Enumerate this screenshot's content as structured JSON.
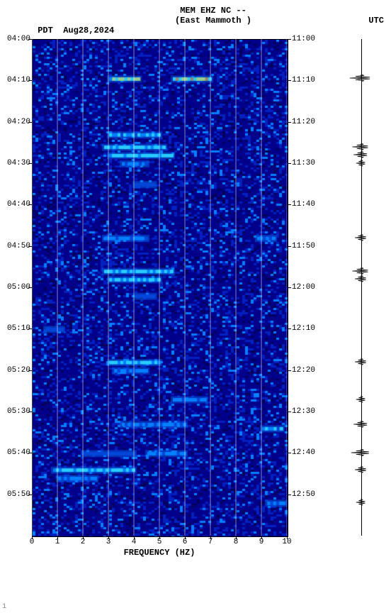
{
  "header": {
    "title_line1": "MEM EHZ NC --",
    "title_line2": "(East Mammoth )",
    "left_tz": "PDT",
    "left_date": "Aug28,2024",
    "right_tz": "UTC"
  },
  "plot": {
    "frequency_title": "FREQUENCY (HZ)",
    "xlim": [
      0,
      10
    ],
    "xticks": [
      0,
      1,
      2,
      3,
      4,
      5,
      6,
      7,
      8,
      9,
      10
    ],
    "left_time_start": "04:00",
    "right_time_start": "11:00",
    "time_span_minutes": 120,
    "ytick_step_minutes": 10,
    "left_labels": [
      "04:00",
      "04:10",
      "04:20",
      "04:30",
      "04:40",
      "04:50",
      "05:00",
      "05:10",
      "05:20",
      "05:30",
      "05:40",
      "05:50"
    ],
    "right_labels": [
      "11:00",
      "11:10",
      "11:20",
      "11:30",
      "11:40",
      "11:50",
      "12:00",
      "12:10",
      "12:20",
      "12:30",
      "12:40",
      "12:50"
    ],
    "background_color": "#00008b",
    "grid_color": "#ffffff",
    "colormap": {
      "low": "#00005a",
      "mid1": "#0020c0",
      "mid2": "#0080ff",
      "high1": "#40ffff",
      "high2": "#ffff40",
      "high3": "#ff8000"
    }
  },
  "events": [
    {
      "time_min": 9.5,
      "freq_lo": 3.0,
      "freq_hi": 4.2,
      "intensity": 0.85
    },
    {
      "time_min": 9.5,
      "freq_lo": 5.5,
      "freq_hi": 7.0,
      "intensity": 0.95
    },
    {
      "time_min": 23,
      "freq_lo": 3.0,
      "freq_hi": 5.0,
      "intensity": 0.6
    },
    {
      "time_min": 26,
      "freq_lo": 2.8,
      "freq_hi": 5.2,
      "intensity": 0.7
    },
    {
      "time_min": 28,
      "freq_lo": 3.0,
      "freq_hi": 5.5,
      "intensity": 0.75
    },
    {
      "time_min": 30,
      "freq_lo": 3.5,
      "freq_hi": 4.5,
      "intensity": 0.5
    },
    {
      "time_min": 35,
      "freq_lo": 4.0,
      "freq_hi": 4.8,
      "intensity": 0.4
    },
    {
      "time_min": 48,
      "freq_lo": 2.8,
      "freq_hi": 4.5,
      "intensity": 0.55
    },
    {
      "time_min": 48,
      "freq_lo": 8.8,
      "freq_hi": 9.5,
      "intensity": 0.5
    },
    {
      "time_min": 56,
      "freq_lo": 2.8,
      "freq_hi": 5.5,
      "intensity": 0.7
    },
    {
      "time_min": 58,
      "freq_lo": 3.0,
      "freq_hi": 5.0,
      "intensity": 0.65
    },
    {
      "time_min": 62,
      "freq_lo": 4.0,
      "freq_hi": 4.8,
      "intensity": 0.4
    },
    {
      "time_min": 70,
      "freq_lo": 0.5,
      "freq_hi": 1.2,
      "intensity": 0.35
    },
    {
      "time_min": 78,
      "freq_lo": 3.0,
      "freq_hi": 5.0,
      "intensity": 0.7
    },
    {
      "time_min": 80,
      "freq_lo": 3.2,
      "freq_hi": 4.5,
      "intensity": 0.5
    },
    {
      "time_min": 87,
      "freq_lo": 5.5,
      "freq_hi": 6.8,
      "intensity": 0.55
    },
    {
      "time_min": 93,
      "freq_lo": 3.5,
      "freq_hi": 6.0,
      "intensity": 0.5
    },
    {
      "time_min": 94,
      "freq_lo": 9.0,
      "freq_hi": 9.8,
      "intensity": 0.6
    },
    {
      "time_min": 100,
      "freq_lo": 2.0,
      "freq_hi": 4.0,
      "intensity": 0.4
    },
    {
      "time_min": 100,
      "freq_lo": 4.5,
      "freq_hi": 6.0,
      "intensity": 0.55
    },
    {
      "time_min": 104,
      "freq_lo": 0.8,
      "freq_hi": 4.0,
      "intensity": 0.7
    },
    {
      "time_min": 106,
      "freq_lo": 1.0,
      "freq_hi": 2.5,
      "intensity": 0.5
    },
    {
      "time_min": 112,
      "freq_lo": 9.2,
      "freq_hi": 9.9,
      "intensity": 0.5
    }
  ],
  "noise_density": 0.35,
  "seismogram": {
    "events": [
      {
        "time_min": 9.5,
        "amp": 0.9
      },
      {
        "time_min": 26,
        "amp": 0.7
      },
      {
        "time_min": 28,
        "amp": 0.6
      },
      {
        "time_min": 30,
        "amp": 0.4
      },
      {
        "time_min": 48,
        "amp": 0.5
      },
      {
        "time_min": 56,
        "amp": 0.7
      },
      {
        "time_min": 58,
        "amp": 0.5
      },
      {
        "time_min": 78,
        "amp": 0.5
      },
      {
        "time_min": 87,
        "amp": 0.4
      },
      {
        "time_min": 93,
        "amp": 0.6
      },
      {
        "time_min": 100,
        "amp": 0.8
      },
      {
        "time_min": 104,
        "amp": 0.5
      },
      {
        "time_min": 112,
        "amp": 0.4
      }
    ],
    "color": "#000000"
  },
  "corner_mark": "1"
}
